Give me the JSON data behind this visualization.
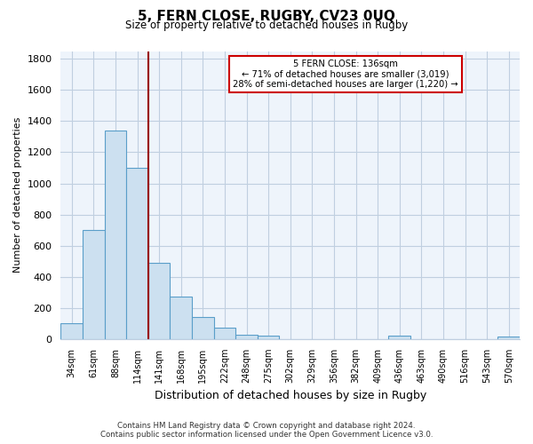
{
  "title": "5, FERN CLOSE, RUGBY, CV23 0UQ",
  "subtitle": "Size of property relative to detached houses in Rugby",
  "xlabel": "Distribution of detached houses by size in Rugby",
  "ylabel": "Number of detached properties",
  "bar_labels": [
    "34sqm",
    "61sqm",
    "88sqm",
    "114sqm",
    "141sqm",
    "168sqm",
    "195sqm",
    "222sqm",
    "248sqm",
    "275sqm",
    "302sqm",
    "329sqm",
    "356sqm",
    "382sqm",
    "409sqm",
    "436sqm",
    "463sqm",
    "490sqm",
    "516sqm",
    "543sqm",
    "570sqm"
  ],
  "bar_values": [
    100,
    700,
    1340,
    1100,
    490,
    275,
    140,
    75,
    30,
    25,
    0,
    0,
    0,
    0,
    0,
    20,
    0,
    0,
    0,
    0,
    15
  ],
  "bar_color": "#cce0f0",
  "bar_edge_color": "#5a9ec9",
  "vline_x_index": 4,
  "vline_color": "#990000",
  "annotation_title": "5 FERN CLOSE: 136sqm",
  "annotation_line1": "← 71% of detached houses are smaller (3,019)",
  "annotation_line2": "28% of semi-detached houses are larger (1,220) →",
  "annotation_box_color": "#ffffff",
  "annotation_box_edge": "#cc0000",
  "ylim": [
    0,
    1850
  ],
  "yticks": [
    0,
    200,
    400,
    600,
    800,
    1000,
    1200,
    1400,
    1600,
    1800
  ],
  "footer_line1": "Contains HM Land Registry data © Crown copyright and database right 2024.",
  "footer_line2": "Contains public sector information licensed under the Open Government Licence v3.0.",
  "bg_color": "#ffffff",
  "plot_bg_color": "#eef4fb",
  "grid_color": "#c0cfe0"
}
